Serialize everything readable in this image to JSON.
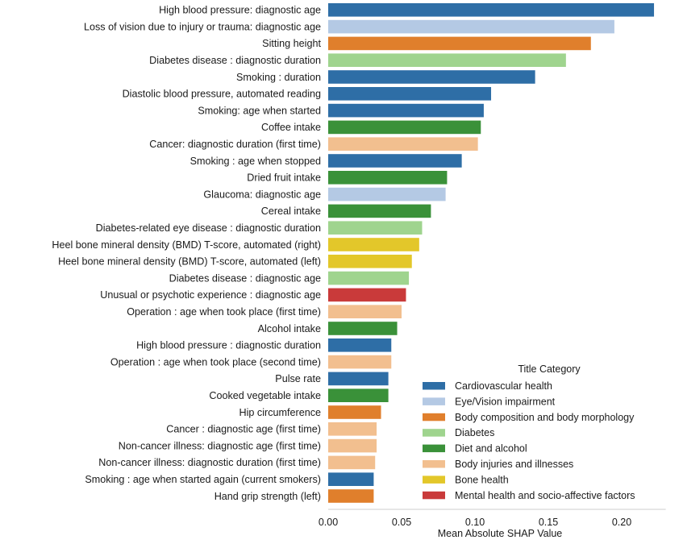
{
  "chart_data": {
    "type": "bar",
    "orientation": "horizontal",
    "xlabel": "Mean Absolute SHAP Value",
    "ylabel": "",
    "xlim": [
      0,
      0.23
    ],
    "xticks": [
      "0.00",
      "0.05",
      "0.10",
      "0.15",
      "0.20"
    ],
    "grid": false,
    "legend": {
      "title": "Title Category",
      "position": "bottom-right",
      "entries": [
        {
          "name": "Cardiovascular health",
          "color": "#2e6ea6"
        },
        {
          "name": "Eye/Vision impairment",
          "color": "#b4c9e4"
        },
        {
          "name": "Body composition and body morphology",
          "color": "#e07f2c"
        },
        {
          "name": "Diabetes",
          "color": "#9fd48e"
        },
        {
          "name": "Diet and alcohol",
          "color": "#3a9139"
        },
        {
          "name": "Body injuries and illnesses",
          "color": "#f2bf8f"
        },
        {
          "name": "Bone health",
          "color": "#e3c72a"
        },
        {
          "name": "Mental health and socio-affective factors",
          "color": "#c93a3a"
        }
      ]
    },
    "bars": [
      {
        "label": "High blood pressure: diagnostic age",
        "value": 0.222,
        "category": 0
      },
      {
        "label": "Loss of vision due to injury or trauma: diagnostic age",
        "value": 0.195,
        "category": 1
      },
      {
        "label": "Sitting height",
        "value": 0.179,
        "category": 2
      },
      {
        "label": "Diabetes disease : diagnostic duration",
        "value": 0.162,
        "category": 3
      },
      {
        "label": "Smoking : duration",
        "value": 0.141,
        "category": 0
      },
      {
        "label": "Diastolic blood pressure, automated reading",
        "value": 0.111,
        "category": 0
      },
      {
        "label": "Smoking: age when started",
        "value": 0.106,
        "category": 0
      },
      {
        "label": "Coffee intake",
        "value": 0.104,
        "category": 4
      },
      {
        "label": "Cancer: diagnostic duration (first time)",
        "value": 0.102,
        "category": 5
      },
      {
        "label": "Smoking : age when stopped",
        "value": 0.091,
        "category": 0
      },
      {
        "label": "Dried fruit intake",
        "value": 0.081,
        "category": 4
      },
      {
        "label": "Glaucoma: diagnostic age",
        "value": 0.08,
        "category": 1
      },
      {
        "label": "Cereal intake",
        "value": 0.07,
        "category": 4
      },
      {
        "label": "Diabetes-related eye disease : diagnostic duration",
        "value": 0.064,
        "category": 3
      },
      {
        "label": "Heel bone mineral density (BMD) T-score, automated (right)",
        "value": 0.062,
        "category": 6
      },
      {
        "label": "Heel bone mineral density (BMD) T-score, automated (left)",
        "value": 0.057,
        "category": 6
      },
      {
        "label": "Diabetes disease : diagnostic age",
        "value": 0.055,
        "category": 3
      },
      {
        "label": "Unusual or psychotic experience : diagnostic age",
        "value": 0.053,
        "category": 7
      },
      {
        "label": "Operation : age when took place (first time)",
        "value": 0.05,
        "category": 5
      },
      {
        "label": "Alcohol intake",
        "value": 0.047,
        "category": 4
      },
      {
        "label": "High blood pressure : diagnostic duration",
        "value": 0.043,
        "category": 0
      },
      {
        "label": "Operation : age when took place (second time)",
        "value": 0.043,
        "category": 5
      },
      {
        "label": "Pulse rate",
        "value": 0.041,
        "category": 0
      },
      {
        "label": "Cooked vegetable intake",
        "value": 0.041,
        "category": 4
      },
      {
        "label": "Hip circumference",
        "value": 0.036,
        "category": 2
      },
      {
        "label": "Cancer : diagnostic age (first time)",
        "value": 0.033,
        "category": 5
      },
      {
        "label": "Non-cancer illness: diagnostic age (first time)",
        "value": 0.033,
        "category": 5
      },
      {
        "label": "Non-cancer illness: diagnostic duration (first time)",
        "value": 0.032,
        "category": 5
      },
      {
        "label": "Smoking : age when started again (current smokers)",
        "value": 0.031,
        "category": 0
      },
      {
        "label": "Hand grip strength (left)",
        "value": 0.031,
        "category": 2
      }
    ]
  }
}
